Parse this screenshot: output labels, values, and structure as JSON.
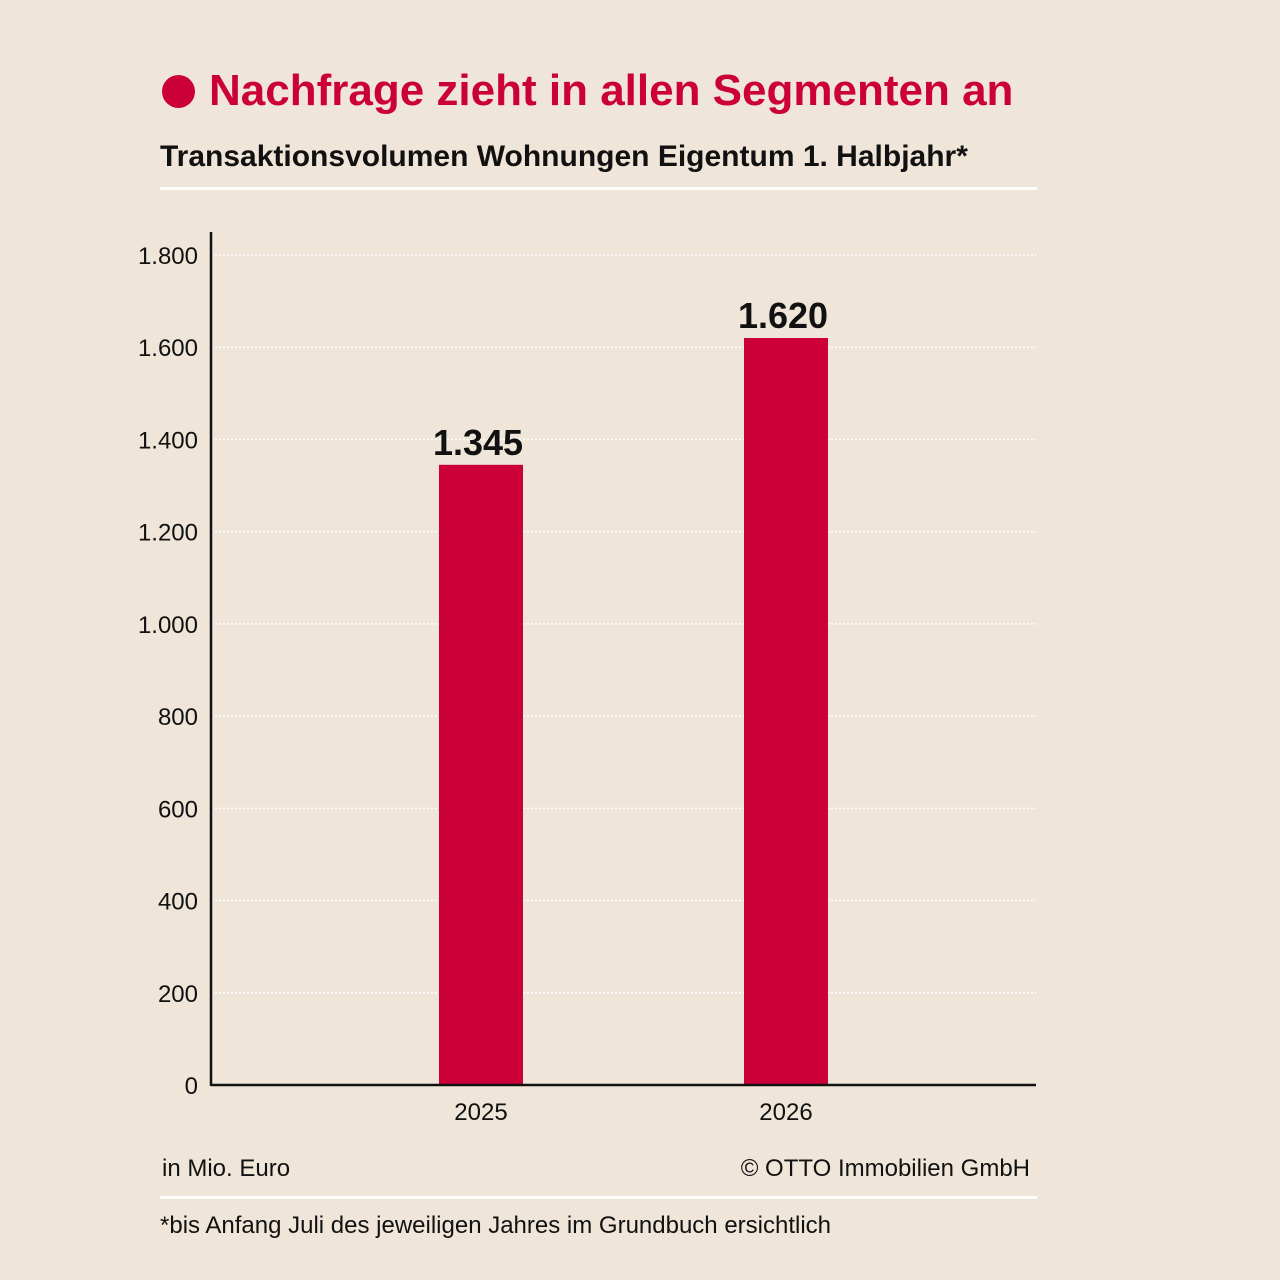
{
  "header": {
    "title": "Nachfrage zieht in allen Segmenten an",
    "subtitle": "Transaktionsvolumen Wohnungen Eigentum 1. Halbjahr*"
  },
  "footer": {
    "unit": "in Mio. Euro",
    "credit": "© OTTO Immobilien GmbH",
    "footnote": "*bis Anfang Juli des jeweiligen Jahres im Grundbuch ersichtlich"
  },
  "colors": {
    "accent": "#cc0038",
    "background": "#efe5d9"
  },
  "chart_data": {
    "type": "bar",
    "categories": [
      "2025",
      "2026"
    ],
    "values": [
      1345,
      1620
    ],
    "value_labels": [
      "1.345",
      "1.620"
    ],
    "ylim": [
      0,
      1800
    ],
    "yticks": [
      0,
      200,
      400,
      600,
      800,
      1000,
      1200,
      1400,
      1600,
      1800
    ],
    "ytick_labels": [
      "0",
      "200",
      "400",
      "600",
      "800",
      "1.000",
      "1.200",
      "1.400",
      "1.600",
      "1.800"
    ],
    "grid": true,
    "xlabel": "",
    "ylabel": "in Mio. Euro"
  }
}
